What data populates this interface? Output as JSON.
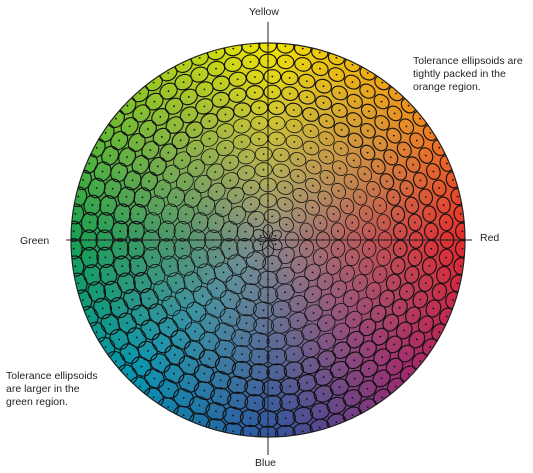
{
  "axes": {
    "top": "Yellow",
    "right": "Red",
    "left": "Green",
    "bottom": "Blue"
  },
  "annotations": {
    "orange_region": "Tolerance ellipsoids are\ntightly packed in the\norange region.",
    "green_region": "Tolerance ellipsoids\nare larger in the\ngreen region."
  },
  "colors": {
    "yellow": "#f2e600",
    "orange": "#f08c1e",
    "red": "#e6282d",
    "magenta": "#a0286e",
    "blue": "#2d55a0",
    "cyan": "#0096b4",
    "green": "#14a050",
    "center_gray": "#8c8c8c",
    "ellipse_stroke": "#111111",
    "axis_line": "#231f20"
  }
}
